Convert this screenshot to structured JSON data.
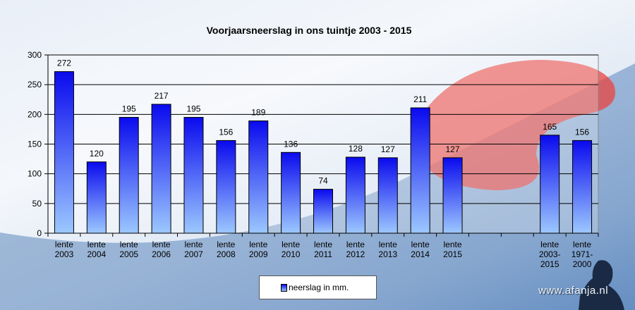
{
  "chart_data": {
    "type": "bar",
    "title": "Voorjaarsneerslag in ons tuintje 2003 - 2015",
    "categories": [
      [
        "lente",
        "2003"
      ],
      [
        "lente",
        "2004"
      ],
      [
        "lente",
        "2005"
      ],
      [
        "lente",
        "2006"
      ],
      [
        "lente",
        "2007"
      ],
      [
        "lente",
        "2008"
      ],
      [
        "lente",
        "2009"
      ],
      [
        "lente",
        "2010"
      ],
      [
        "lente",
        "2011"
      ],
      [
        "lente",
        "2012"
      ],
      [
        "lente",
        "2013"
      ],
      [
        "lente",
        "2014"
      ],
      [
        "lente",
        "2015"
      ],
      [],
      [],
      [
        "lente",
        "2003-",
        "2015"
      ],
      [
        "lente",
        "1971-",
        "2000"
      ]
    ],
    "series": [
      {
        "name": "neerslag in mm.",
        "values": [
          272,
          120,
          195,
          217,
          195,
          156,
          189,
          136,
          74,
          128,
          127,
          211,
          127,
          null,
          null,
          165,
          156
        ]
      }
    ],
    "ylim": [
      0,
      300
    ],
    "yticks": [
      0,
      50,
      100,
      150,
      200,
      250,
      300
    ],
    "grid": true,
    "legend_position": "bottom",
    "bar_color_top": "#0a0aee",
    "bar_color_bottom": "#9cc8ff"
  },
  "watermark": "www.afanja.nl"
}
